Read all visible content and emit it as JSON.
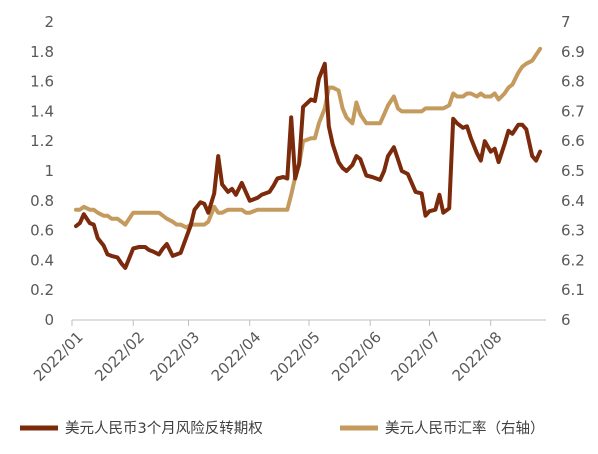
{
  "chart_data": {
    "type": "line",
    "title": "",
    "xlabel": "",
    "ylabel": "",
    "grid": false,
    "legend_position": "bottom",
    "x_ticks": [
      "2022/01",
      "2022/02",
      "2022/03",
      "2022/04",
      "2022/05",
      "2022/06",
      "2022/07",
      "2022/08"
    ],
    "y_left": {
      "min": 0,
      "max": 2,
      "ticks": [
        "0",
        "0.2",
        "0.4",
        "0.6",
        "0.8",
        "1",
        "1.2",
        "1.4",
        "1.6",
        "1.8",
        "2"
      ]
    },
    "y_right": {
      "min": 6,
      "max": 7,
      "ticks": [
        "6",
        "6.1",
        "6.2",
        "6.3",
        "6.4",
        "6.5",
        "6.6",
        "6.7",
        "6.8",
        "6.9",
        "7"
      ]
    },
    "series": [
      {
        "name": "美元人民币3个月风险反转期权",
        "axis": "left",
        "color": "#7B2A0C",
        "points": [
          [
            "2022-01-03",
            0.63
          ],
          [
            "2022-01-05",
            0.65
          ],
          [
            "2022-01-07",
            0.71
          ],
          [
            "2022-01-10",
            0.65
          ],
          [
            "2022-01-12",
            0.64
          ],
          [
            "2022-01-14",
            0.55
          ],
          [
            "2022-01-17",
            0.5
          ],
          [
            "2022-01-19",
            0.44
          ],
          [
            "2022-01-21",
            0.43
          ],
          [
            "2022-01-24",
            0.42
          ],
          [
            "2022-01-26",
            0.38
          ],
          [
            "2022-01-28",
            0.35
          ],
          [
            "2022-02-01",
            0.48
          ],
          [
            "2022-02-04",
            0.49
          ],
          [
            "2022-02-07",
            0.49
          ],
          [
            "2022-02-09",
            0.47
          ],
          [
            "2022-02-11",
            0.46
          ],
          [
            "2022-02-14",
            0.44
          ],
          [
            "2022-02-16",
            0.48
          ],
          [
            "2022-02-18",
            0.51
          ],
          [
            "2022-02-21",
            0.43
          ],
          [
            "2022-02-23",
            0.44
          ],
          [
            "2022-02-25",
            0.45
          ],
          [
            "2022-02-28",
            0.56
          ],
          [
            "2022-03-02",
            0.63
          ],
          [
            "2022-03-04",
            0.74
          ],
          [
            "2022-03-07",
            0.79
          ],
          [
            "2022-03-09",
            0.78
          ],
          [
            "2022-03-11",
            0.72
          ],
          [
            "2022-03-14",
            0.85
          ],
          [
            "2022-03-16",
            1.1
          ],
          [
            "2022-03-18",
            0.91
          ],
          [
            "2022-03-21",
            0.86
          ],
          [
            "2022-03-23",
            0.88
          ],
          [
            "2022-03-25",
            0.84
          ],
          [
            "2022-03-28",
            0.92
          ],
          [
            "2022-03-30",
            0.86
          ],
          [
            "2022-04-01",
            0.8
          ],
          [
            "2022-04-05",
            0.82
          ],
          [
            "2022-04-07",
            0.84
          ],
          [
            "2022-04-11",
            0.86
          ],
          [
            "2022-04-13",
            0.9
          ],
          [
            "2022-04-15",
            0.95
          ],
          [
            "2022-04-18",
            0.96
          ],
          [
            "2022-04-20",
            0.95
          ],
          [
            "2022-04-22",
            1.36
          ],
          [
            "2022-04-24",
            0.95
          ],
          [
            "2022-04-26",
            1.05
          ],
          [
            "2022-04-28",
            1.43
          ],
          [
            "2022-05-02",
            1.48
          ],
          [
            "2022-05-04",
            1.47
          ],
          [
            "2022-05-06",
            1.62
          ],
          [
            "2022-05-09",
            1.72
          ],
          [
            "2022-05-11",
            1.3
          ],
          [
            "2022-05-13",
            1.18
          ],
          [
            "2022-05-16",
            1.06
          ],
          [
            "2022-05-18",
            1.02
          ],
          [
            "2022-05-20",
            1.0
          ],
          [
            "2022-05-23",
            1.04
          ],
          [
            "2022-05-25",
            1.1
          ],
          [
            "2022-05-27",
            1.08
          ],
          [
            "2022-05-30",
            0.97
          ],
          [
            "2022-06-02",
            0.96
          ],
          [
            "2022-06-06",
            0.94
          ],
          [
            "2022-06-08",
            1.0
          ],
          [
            "2022-06-10",
            1.1
          ],
          [
            "2022-06-13",
            1.16
          ],
          [
            "2022-06-15",
            1.08
          ],
          [
            "2022-06-17",
            1.0
          ],
          [
            "2022-06-20",
            0.98
          ],
          [
            "2022-06-22",
            0.92
          ],
          [
            "2022-06-24",
            0.86
          ],
          [
            "2022-06-27",
            0.85
          ],
          [
            "2022-06-29",
            0.7
          ],
          [
            "2022-07-01",
            0.73
          ],
          [
            "2022-07-04",
            0.74
          ],
          [
            "2022-07-06",
            0.84
          ],
          [
            "2022-07-08",
            0.72
          ],
          [
            "2022-07-11",
            0.75
          ],
          [
            "2022-07-13",
            1.35
          ],
          [
            "2022-07-15",
            1.32
          ],
          [
            "2022-07-18",
            1.29
          ],
          [
            "2022-07-20",
            1.3
          ],
          [
            "2022-07-22",
            1.22
          ],
          [
            "2022-07-25",
            1.12
          ],
          [
            "2022-07-27",
            1.07
          ],
          [
            "2022-07-29",
            1.2
          ],
          [
            "2022-08-01",
            1.13
          ],
          [
            "2022-08-03",
            1.15
          ],
          [
            "2022-08-05",
            1.06
          ],
          [
            "2022-08-08",
            1.18
          ],
          [
            "2022-08-10",
            1.27
          ],
          [
            "2022-08-12",
            1.25
          ],
          [
            "2022-08-15",
            1.31
          ],
          [
            "2022-08-17",
            1.31
          ],
          [
            "2022-08-19",
            1.28
          ],
          [
            "2022-08-22",
            1.1
          ],
          [
            "2022-08-24",
            1.07
          ],
          [
            "2022-08-26",
            1.13
          ]
        ]
      },
      {
        "name": "美元人民币汇率（右轴）",
        "axis": "right",
        "color": "#C49A5E",
        "points": [
          [
            "2022-01-03",
            6.37
          ],
          [
            "2022-01-05",
            6.37
          ],
          [
            "2022-01-07",
            6.38
          ],
          [
            "2022-01-10",
            6.37
          ],
          [
            "2022-01-12",
            6.37
          ],
          [
            "2022-01-14",
            6.36
          ],
          [
            "2022-01-17",
            6.35
          ],
          [
            "2022-01-19",
            6.35
          ],
          [
            "2022-01-21",
            6.34
          ],
          [
            "2022-01-24",
            6.34
          ],
          [
            "2022-01-26",
            6.33
          ],
          [
            "2022-01-28",
            6.32
          ],
          [
            "2022-02-01",
            6.36
          ],
          [
            "2022-02-04",
            6.36
          ],
          [
            "2022-02-07",
            6.36
          ],
          [
            "2022-02-09",
            6.36
          ],
          [
            "2022-02-11",
            6.36
          ],
          [
            "2022-02-14",
            6.36
          ],
          [
            "2022-02-16",
            6.35
          ],
          [
            "2022-02-18",
            6.34
          ],
          [
            "2022-02-21",
            6.33
          ],
          [
            "2022-02-23",
            6.32
          ],
          [
            "2022-02-25",
            6.32
          ],
          [
            "2022-02-28",
            6.31
          ],
          [
            "2022-03-02",
            6.32
          ],
          [
            "2022-03-04",
            6.32
          ],
          [
            "2022-03-07",
            6.32
          ],
          [
            "2022-03-09",
            6.32
          ],
          [
            "2022-03-11",
            6.33
          ],
          [
            "2022-03-14",
            6.38
          ],
          [
            "2022-03-16",
            6.36
          ],
          [
            "2022-03-18",
            6.36
          ],
          [
            "2022-03-21",
            6.37
          ],
          [
            "2022-03-23",
            6.37
          ],
          [
            "2022-03-25",
            6.37
          ],
          [
            "2022-03-28",
            6.37
          ],
          [
            "2022-03-30",
            6.36
          ],
          [
            "2022-04-01",
            6.36
          ],
          [
            "2022-04-05",
            6.37
          ],
          [
            "2022-04-07",
            6.37
          ],
          [
            "2022-04-11",
            6.37
          ],
          [
            "2022-04-13",
            6.37
          ],
          [
            "2022-04-15",
            6.37
          ],
          [
            "2022-04-18",
            6.37
          ],
          [
            "2022-04-20",
            6.37
          ],
          [
            "2022-04-22",
            6.42
          ],
          [
            "2022-04-24",
            6.48
          ],
          [
            "2022-04-26",
            6.52
          ],
          [
            "2022-04-28",
            6.6
          ],
          [
            "2022-05-02",
            6.61
          ],
          [
            "2022-05-04",
            6.61
          ],
          [
            "2022-05-06",
            6.66
          ],
          [
            "2022-05-09",
            6.71
          ],
          [
            "2022-05-11",
            6.78
          ],
          [
            "2022-05-13",
            6.78
          ],
          [
            "2022-05-16",
            6.77
          ],
          [
            "2022-05-18",
            6.71
          ],
          [
            "2022-05-20",
            6.68
          ],
          [
            "2022-05-23",
            6.66
          ],
          [
            "2022-05-25",
            6.73
          ],
          [
            "2022-05-27",
            6.69
          ],
          [
            "2022-05-30",
            6.66
          ],
          [
            "2022-06-02",
            6.66
          ],
          [
            "2022-06-06",
            6.66
          ],
          [
            "2022-06-08",
            6.69
          ],
          [
            "2022-06-10",
            6.72
          ],
          [
            "2022-06-13",
            6.75
          ],
          [
            "2022-06-15",
            6.71
          ],
          [
            "2022-06-17",
            6.7
          ],
          [
            "2022-06-20",
            6.7
          ],
          [
            "2022-06-22",
            6.7
          ],
          [
            "2022-06-24",
            6.7
          ],
          [
            "2022-06-27",
            6.7
          ],
          [
            "2022-06-29",
            6.71
          ],
          [
            "2022-07-01",
            6.71
          ],
          [
            "2022-07-04",
            6.71
          ],
          [
            "2022-07-06",
            6.71
          ],
          [
            "2022-07-08",
            6.71
          ],
          [
            "2022-07-11",
            6.72
          ],
          [
            "2022-07-13",
            6.76
          ],
          [
            "2022-07-15",
            6.75
          ],
          [
            "2022-07-18",
            6.75
          ],
          [
            "2022-07-20",
            6.76
          ],
          [
            "2022-07-22",
            6.76
          ],
          [
            "2022-07-25",
            6.75
          ],
          [
            "2022-07-27",
            6.76
          ],
          [
            "2022-07-29",
            6.75
          ],
          [
            "2022-08-01",
            6.75
          ],
          [
            "2022-08-03",
            6.76
          ],
          [
            "2022-08-05",
            6.74
          ],
          [
            "2022-08-08",
            6.76
          ],
          [
            "2022-08-10",
            6.78
          ],
          [
            "2022-08-12",
            6.79
          ],
          [
            "2022-08-15",
            6.83
          ],
          [
            "2022-08-17",
            6.85
          ],
          [
            "2022-08-19",
            6.86
          ],
          [
            "2022-08-22",
            6.87
          ],
          [
            "2022-08-24",
            6.89
          ],
          [
            "2022-08-26",
            6.91
          ]
        ]
      }
    ]
  }
}
